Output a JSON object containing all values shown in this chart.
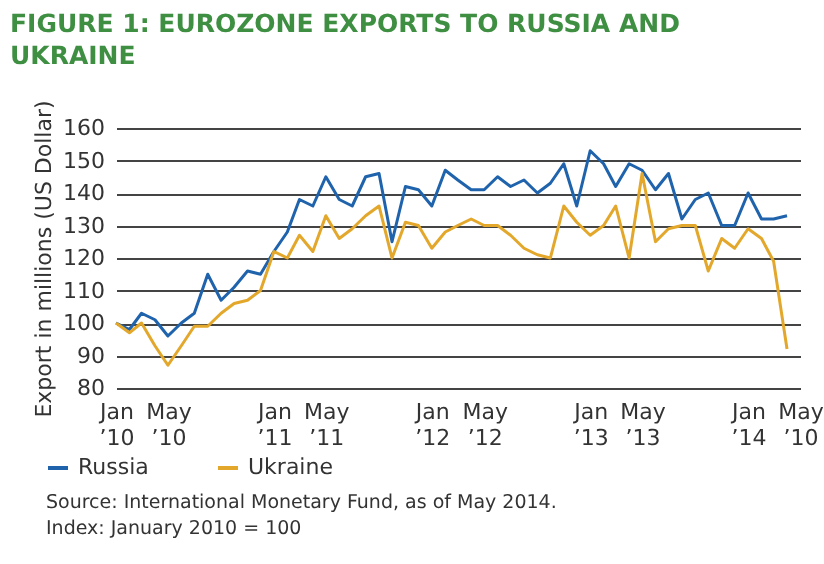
{
  "chart_data": {
    "type": "line",
    "title": "FIGURE 1: EUROZONE EXPORTS TO RUSSIA AND UKRAINE",
    "ylabel": "Export in millions (US Dollar)",
    "x": [
      "2010-01",
      "2010-02",
      "2010-03",
      "2010-04",
      "2010-05",
      "2010-06",
      "2010-07",
      "2010-08",
      "2010-09",
      "2010-10",
      "2010-11",
      "2010-12",
      "2011-01",
      "2011-02",
      "2011-03",
      "2011-04",
      "2011-05",
      "2011-06",
      "2011-07",
      "2011-08",
      "2011-09",
      "2011-10",
      "2011-11",
      "2011-12",
      "2012-01",
      "2012-02",
      "2012-03",
      "2012-04",
      "2012-05",
      "2012-06",
      "2012-07",
      "2012-08",
      "2012-09",
      "2012-10",
      "2012-11",
      "2012-12",
      "2013-01",
      "2013-02",
      "2013-03",
      "2013-04",
      "2013-05",
      "2013-06",
      "2013-07",
      "2013-08",
      "2013-09",
      "2013-10",
      "2013-11",
      "2013-12",
      "2014-01",
      "2014-02",
      "2014-03",
      "2014-04"
    ],
    "series": [
      {
        "name": "Russia",
        "color": "#1f63ad",
        "values": [
          100,
          98,
          103,
          101,
          96,
          100,
          103,
          115,
          107,
          111,
          116,
          115,
          122,
          128,
          138,
          136,
          145,
          138,
          136,
          145,
          146,
          125,
          142,
          141,
          136,
          147,
          144,
          141,
          141,
          145,
          142,
          144,
          140,
          143,
          149,
          136,
          153,
          149,
          142,
          149,
          147,
          141,
          146,
          132,
          138,
          140,
          130,
          130,
          140,
          132,
          132,
          133
        ]
      },
      {
        "name": "Ukraine",
        "color": "#e3a82b",
        "values": [
          100,
          97,
          100,
          93,
          87,
          93,
          99,
          99,
          103,
          106,
          107,
          110,
          122,
          120,
          127,
          122,
          133,
          126,
          129,
          133,
          136,
          120,
          131,
          130,
          123,
          128,
          130,
          132,
          130,
          130,
          127,
          123,
          121,
          120,
          136,
          131,
          127,
          130,
          136,
          120,
          146,
          125,
          129,
          130,
          130,
          116,
          126,
          123,
          129,
          126,
          119,
          92
        ]
      }
    ],
    "xlim": [
      "2010-01",
      "2014-05"
    ],
    "xticks": [
      {
        "value": "2010-01",
        "label": "Jan ’10"
      },
      {
        "value": "2010-05",
        "label": "May ’10"
      },
      {
        "value": "2011-01",
        "label": "Jan ’11"
      },
      {
        "value": "2011-05",
        "label": "May ’11"
      },
      {
        "value": "2012-01",
        "label": "Jan ’12"
      },
      {
        "value": "2012-05",
        "label": "May ’12"
      },
      {
        "value": "2013-01",
        "label": "Jan ’13"
      },
      {
        "value": "2013-05",
        "label": "May ’13"
      },
      {
        "value": "2014-01",
        "label": "Jan ’14"
      },
      {
        "value": "2014-05",
        "label": "May ’10"
      }
    ],
    "ylim": [
      80,
      160
    ],
    "yticks": [
      80,
      90,
      100,
      110,
      120,
      130,
      140,
      150,
      160
    ],
    "grid": "y",
    "legend": "bottom left",
    "line_style": "solid",
    "marker": "none",
    "annotations": [
      "Source: International Monetary Fund, as of May 2014.",
      "Index: January 2010 = 100"
    ]
  }
}
